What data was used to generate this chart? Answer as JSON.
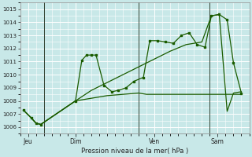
{
  "bg_color": "#c8e8e8",
  "grid_color": "#b0d8d8",
  "line_color": "#1a5c00",
  "marker_color": "#1a5c00",
  "title": "Pression niveau de la mer( hPa )",
  "ylim": [
    1005.5,
    1015.5
  ],
  "yticks": [
    1006,
    1007,
    1008,
    1009,
    1010,
    1011,
    1012,
    1013,
    1014,
    1015
  ],
  "day_labels": [
    "Jeu",
    "Dim",
    "Ven",
    "Sam"
  ],
  "day_positions": [
    0.5,
    3.5,
    8.5,
    12.5
  ],
  "vline_positions": [
    1.5,
    7.5,
    12.0
  ],
  "xlim": [
    0,
    14.5
  ],
  "series1_x": [
    0.2,
    0.7,
    1.0,
    1.3,
    3.5,
    3.9,
    4.2,
    4.5,
    4.8,
    5.3,
    5.8,
    6.2,
    6.7,
    7.2,
    7.8,
    8.2,
    8.7,
    9.2,
    9.7,
    10.2,
    10.7,
    11.2,
    11.7,
    12.1,
    12.6,
    13.1,
    13.5,
    14.0
  ],
  "series1_y": [
    1007.3,
    1006.7,
    1006.3,
    1006.2,
    1008.0,
    1011.1,
    1011.5,
    1011.5,
    1011.5,
    1009.2,
    1008.7,
    1008.8,
    1009.0,
    1009.5,
    1009.8,
    1012.6,
    1012.6,
    1012.5,
    1012.4,
    1013.0,
    1013.2,
    1012.3,
    1012.1,
    1014.5,
    1014.6,
    1014.2,
    1010.9,
    1008.6
  ],
  "series2_x": [
    0.2,
    0.7,
    1.0,
    1.3,
    3.5,
    4.5,
    5.5,
    6.5,
    7.5,
    8.5,
    9.5,
    10.5,
    11.5,
    12.1,
    12.6,
    13.1,
    13.5,
    14.0
  ],
  "series2_y": [
    1007.3,
    1006.7,
    1006.3,
    1006.2,
    1008.0,
    1008.8,
    1009.4,
    1010.0,
    1010.6,
    1011.2,
    1011.8,
    1012.3,
    1012.5,
    1014.5,
    1014.6,
    1007.2,
    1008.6,
    1008.7
  ],
  "series3_x": [
    0.2,
    0.7,
    1.0,
    1.3,
    3.5,
    4.5,
    5.5,
    6.5,
    7.5,
    8.0,
    8.5,
    9.5,
    10.5,
    11.5,
    12.0,
    12.1,
    13.1,
    13.5,
    14.0
  ],
  "series3_y": [
    1007.3,
    1006.7,
    1006.3,
    1006.2,
    1008.0,
    1008.2,
    1008.4,
    1008.5,
    1008.6,
    1008.5,
    1008.5,
    1008.5,
    1008.5,
    1008.5,
    1008.5,
    1008.5,
    1008.5,
    1008.5,
    1008.5
  ]
}
